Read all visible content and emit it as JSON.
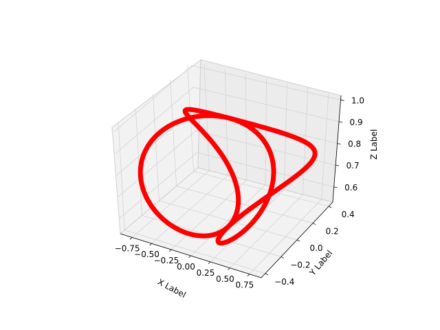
{
  "chart_data": {
    "type": "line3d",
    "title": "",
    "xlabel": "X Label",
    "ylabel": "Y Label",
    "zlabel": "Z Label",
    "xlim": [
      -0.9,
      0.9
    ],
    "ylim": [
      -0.45,
      0.45
    ],
    "zlim": [
      0.53,
      1.02
    ],
    "xticks": [
      "−0.75",
      "−0.50",
      "−0.25",
      "0.00",
      "0.25",
      "0.50",
      "0.75"
    ],
    "yticks": [
      "−0.4",
      "−0.2",
      "0.0",
      "0.2",
      "0.4"
    ],
    "zticks": [
      "0.6",
      "0.7",
      "0.8",
      "0.9",
      "1.0"
    ],
    "grid": true,
    "series": [
      {
        "color": "#ff0000",
        "parametric": "x=sin(2t)cos(t), y=sin(2t)sin(t)/2, z=(1+cos(2t))/4+0.5"
      }
    ]
  }
}
